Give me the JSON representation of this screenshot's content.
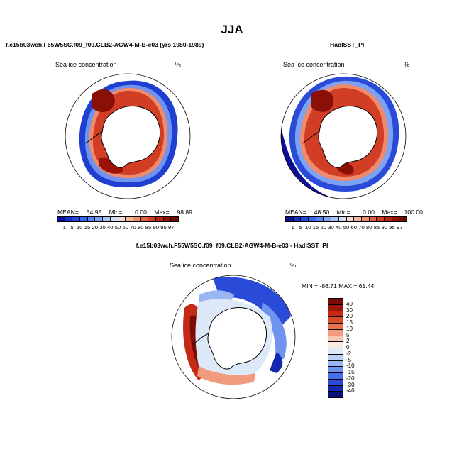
{
  "season": "JJA",
  "panels": {
    "model": {
      "case": "f.e15b03wch.F55W5SC.f09_f09.CLB2-AGW4-M-B-e03 (yrs 1980-1989)",
      "field": "Sea ice concentration",
      "unit": "%",
      "mean_label": "MEAN=",
      "mean": "54.95",
      "min_label": "Min=",
      "min": "0.00",
      "max_label": "Max=",
      "max": "98.89"
    },
    "obs": {
      "case": "HadISST_PI",
      "field": "Sea ice concentration",
      "unit": "%",
      "mean_label": "MEAN=",
      "mean": "48.50",
      "min_label": "Min=",
      "min": "0.00",
      "max_label": "Max=",
      "max": "100.00"
    },
    "diff": {
      "case": "f.e15b03wch.F55W5SC.f09_f09.CLB2-AGW4-M-B-e03 - HadISST_PI",
      "field": "Sea ice concentration",
      "unit": "%",
      "minmax": "MIN = -86.71  MAX =  61.44"
    }
  },
  "abs_colorbar": {
    "ticks": [
      "1",
      "5",
      "10",
      "15",
      "20",
      "30",
      "40",
      "50",
      "60",
      "70",
      "80",
      "85",
      "90",
      "95",
      "97"
    ],
    "colors": [
      "#0a0f96",
      "#1a2fc8",
      "#2448e0",
      "#3a66ee",
      "#5584f2",
      "#7da2f5",
      "#a8c2f6",
      "#cfdcf6",
      "#f6d9cf",
      "#f4b49e",
      "#ef8a6c",
      "#e35f43",
      "#d23d25",
      "#b82314",
      "#931007",
      "#6e0a04"
    ]
  },
  "diff_colorbar": {
    "labels": [
      "40",
      "30",
      "20",
      "15",
      "10",
      "5",
      "2",
      "0",
      "-2",
      "-5",
      "-10",
      "-15",
      "-20",
      "-30",
      "-40"
    ],
    "colors": [
      "#7a0b05",
      "#a0150a",
      "#c42a16",
      "#dc4a2c",
      "#ea7050",
      "#f29a7e",
      "#f7c6b4",
      "#fbe8df",
      "#dde8f8",
      "#bcd0f4",
      "#98b6f2",
      "#6f93ee",
      "#4b6fea",
      "#2a4ad8",
      "#1428b0",
      "#0a1478"
    ]
  }
}
